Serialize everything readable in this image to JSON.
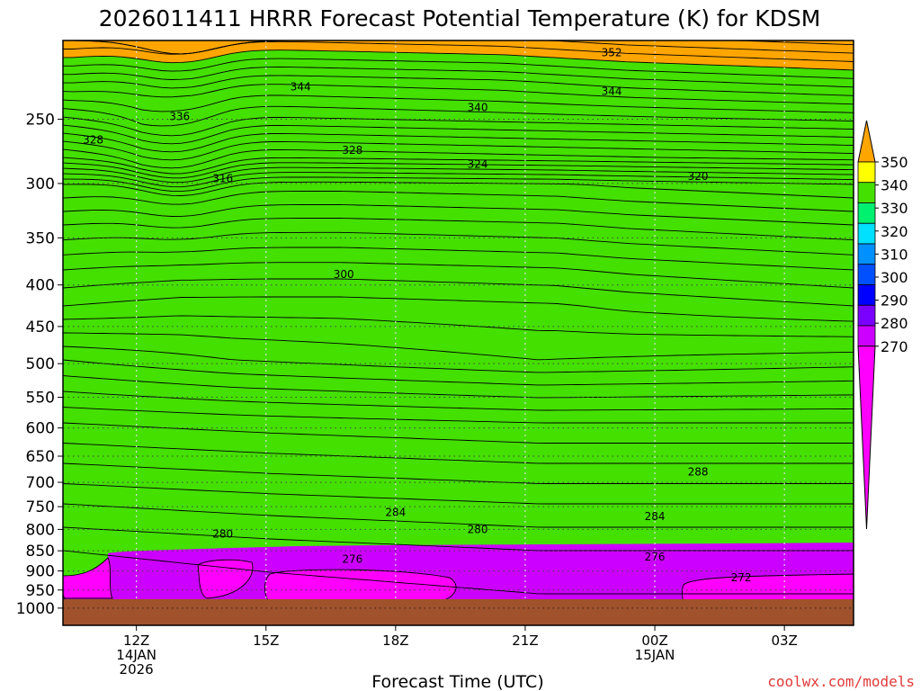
{
  "title": "2026011411 HRRR Forecast Potential Temperature (K) for KDSM",
  "credit": "coolwx.com/models",
  "chart_data": {
    "type": "contour",
    "title": "2026011411 HRRR Forecast Potential Temperature (K) for KDSM",
    "xlabel": "Forecast Time (UTC)",
    "ylabel": "",
    "x_range_hours": [
      10.3,
      28.6
    ],
    "y_range_hpa": [
      1050,
      200
    ],
    "y_scale": "log-pressure",
    "y_ticks": [
      250,
      300,
      350,
      400,
      450,
      500,
      550,
      600,
      650,
      700,
      750,
      800,
      850,
      900,
      950,
      1000
    ],
    "x_ticks": [
      {
        "hour": 12,
        "lines": [
          "12Z",
          "14JAN",
          "2026"
        ]
      },
      {
        "hour": 15,
        "lines": [
          "15Z"
        ]
      },
      {
        "hour": 18,
        "lines": [
          "18Z"
        ]
      },
      {
        "hour": 21,
        "lines": [
          "21Z"
        ]
      },
      {
        "hour": 24,
        "lines": [
          "00Z",
          "15JAN"
        ]
      },
      {
        "hour": 27,
        "lines": [
          "03Z"
        ]
      }
    ],
    "grid": true,
    "ground_level_hpa": 975,
    "contour_interval_k": 2,
    "contour_labels": [
      {
        "label": "352",
        "hour": 23.0,
        "hpa": 207
      },
      {
        "label": "344",
        "hour": 15.8,
        "hpa": 228
      },
      {
        "label": "344",
        "hour": 23.0,
        "hpa": 231
      },
      {
        "label": "340",
        "hour": 19.9,
        "hpa": 242
      },
      {
        "label": "336",
        "hour": 13.0,
        "hpa": 248
      },
      {
        "label": "328",
        "hour": 11.0,
        "hpa": 265
      },
      {
        "label": "328",
        "hour": 17.0,
        "hpa": 273
      },
      {
        "label": "324",
        "hour": 19.9,
        "hpa": 284
      },
      {
        "label": "320",
        "hour": 25.0,
        "hpa": 294
      },
      {
        "label": "316",
        "hour": 14.0,
        "hpa": 296
      },
      {
        "label": "300",
        "hour": 16.8,
        "hpa": 388
      },
      {
        "label": "288",
        "hour": 25.0,
        "hpa": 680
      },
      {
        "label": "284",
        "hour": 18.0,
        "hpa": 762
      },
      {
        "label": "284",
        "hour": 24.0,
        "hpa": 771
      },
      {
        "label": "280",
        "hour": 14.0,
        "hpa": 810
      },
      {
        "label": "280",
        "hour": 19.9,
        "hpa": 800
      },
      {
        "label": "276",
        "hour": 17.0,
        "hpa": 870
      },
      {
        "label": "276",
        "hour": 24.0,
        "hpa": 865
      },
      {
        "label": "272",
        "hour": 26.0,
        "hpa": 917
      }
    ],
    "colorbar": {
      "levels": [
        270,
        280,
        290,
        300,
        310,
        320,
        330,
        340,
        350
      ],
      "labels": [
        "270",
        "280",
        "290",
        "300",
        "310",
        "320",
        "330",
        "340",
        "350"
      ],
      "colors": [
        "#ff00ff",
        "#cc00ff",
        "#7a00ff",
        "#0000ff",
        "#0050ff",
        "#0090ff",
        "#00e0ff",
        "#00f070",
        "#44e000",
        "#ffff00",
        "#ffa500"
      ],
      "extend": "both"
    },
    "layer_boundaries_k": [
      280,
      290,
      300,
      310,
      320,
      330,
      340,
      350
    ]
  }
}
